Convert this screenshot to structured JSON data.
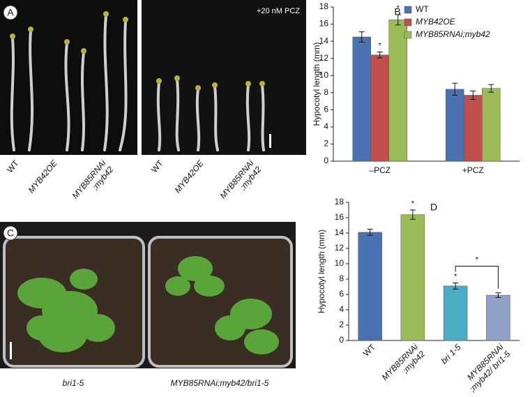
{
  "photos": {
    "a": {
      "letter": "A",
      "treatment": "+20 nM PCZ",
      "labels_left": [
        "WT",
        "MYB42OE",
        [
          "MYB85RNAi",
          ";myb42"
        ]
      ],
      "labels_right": [
        "WT",
        "MYB42OE",
        [
          "MYB85RNAi",
          ";myb42"
        ]
      ]
    },
    "c": {
      "letter": "C",
      "labels": [
        "bri1-5",
        "MYB85RNAi;myb42/bri1-5"
      ]
    }
  },
  "chart_data": [
    {
      "type": "bar",
      "letter": "B",
      "y_label": "Hypocotyl length (mm)",
      "categories": [
        "–PCZ",
        "+PCZ"
      ],
      "series": [
        {
          "name": "WT",
          "color": "#4a72b0",
          "values": [
            14.5,
            8.4
          ],
          "errors": [
            0.6,
            0.7
          ]
        },
        {
          "name": "MYB42OE",
          "color": "#c0504d",
          "values": [
            12.4,
            7.7
          ],
          "errors": [
            0.35,
            0.5
          ],
          "significance": [
            "*",
            null
          ]
        },
        {
          "name": "MYB85RNAi;myb42",
          "color": "#9bbb59",
          "values": [
            16.5,
            8.5
          ],
          "errors": [
            0.6,
            0.45
          ],
          "significance": [
            "*",
            null
          ]
        }
      ],
      "ylim": [
        0,
        18
      ],
      "yticks": [
        0,
        2,
        4,
        6,
        8,
        10,
        12,
        14,
        16,
        18
      ],
      "legend": "top-right"
    },
    {
      "type": "bar",
      "letter": "D",
      "y_label": "Hypocotyl length (mm)",
      "categories": [
        "WT",
        [
          "MYB85RNAi",
          ";myb42"
        ],
        "bri 1-5",
        [
          "MYB85RNAi",
          ";myb42/ bri1-5"
        ]
      ],
      "values": [
        14.1,
        16.4,
        7.1,
        5.9
      ],
      "errors": [
        0.4,
        0.6,
        0.4,
        0.3
      ],
      "colors": [
        "#4a72b0",
        "#9bbb59",
        "#4bacc6",
        "#8fa1c6"
      ],
      "significance": [
        null,
        "*",
        "*",
        null
      ],
      "bracket": {
        "label": "*",
        "from": 2,
        "to": 3
      },
      "ylim": [
        0,
        18
      ],
      "yticks": [
        0,
        2,
        4,
        6,
        8,
        10,
        12,
        14,
        16,
        18
      ]
    }
  ]
}
